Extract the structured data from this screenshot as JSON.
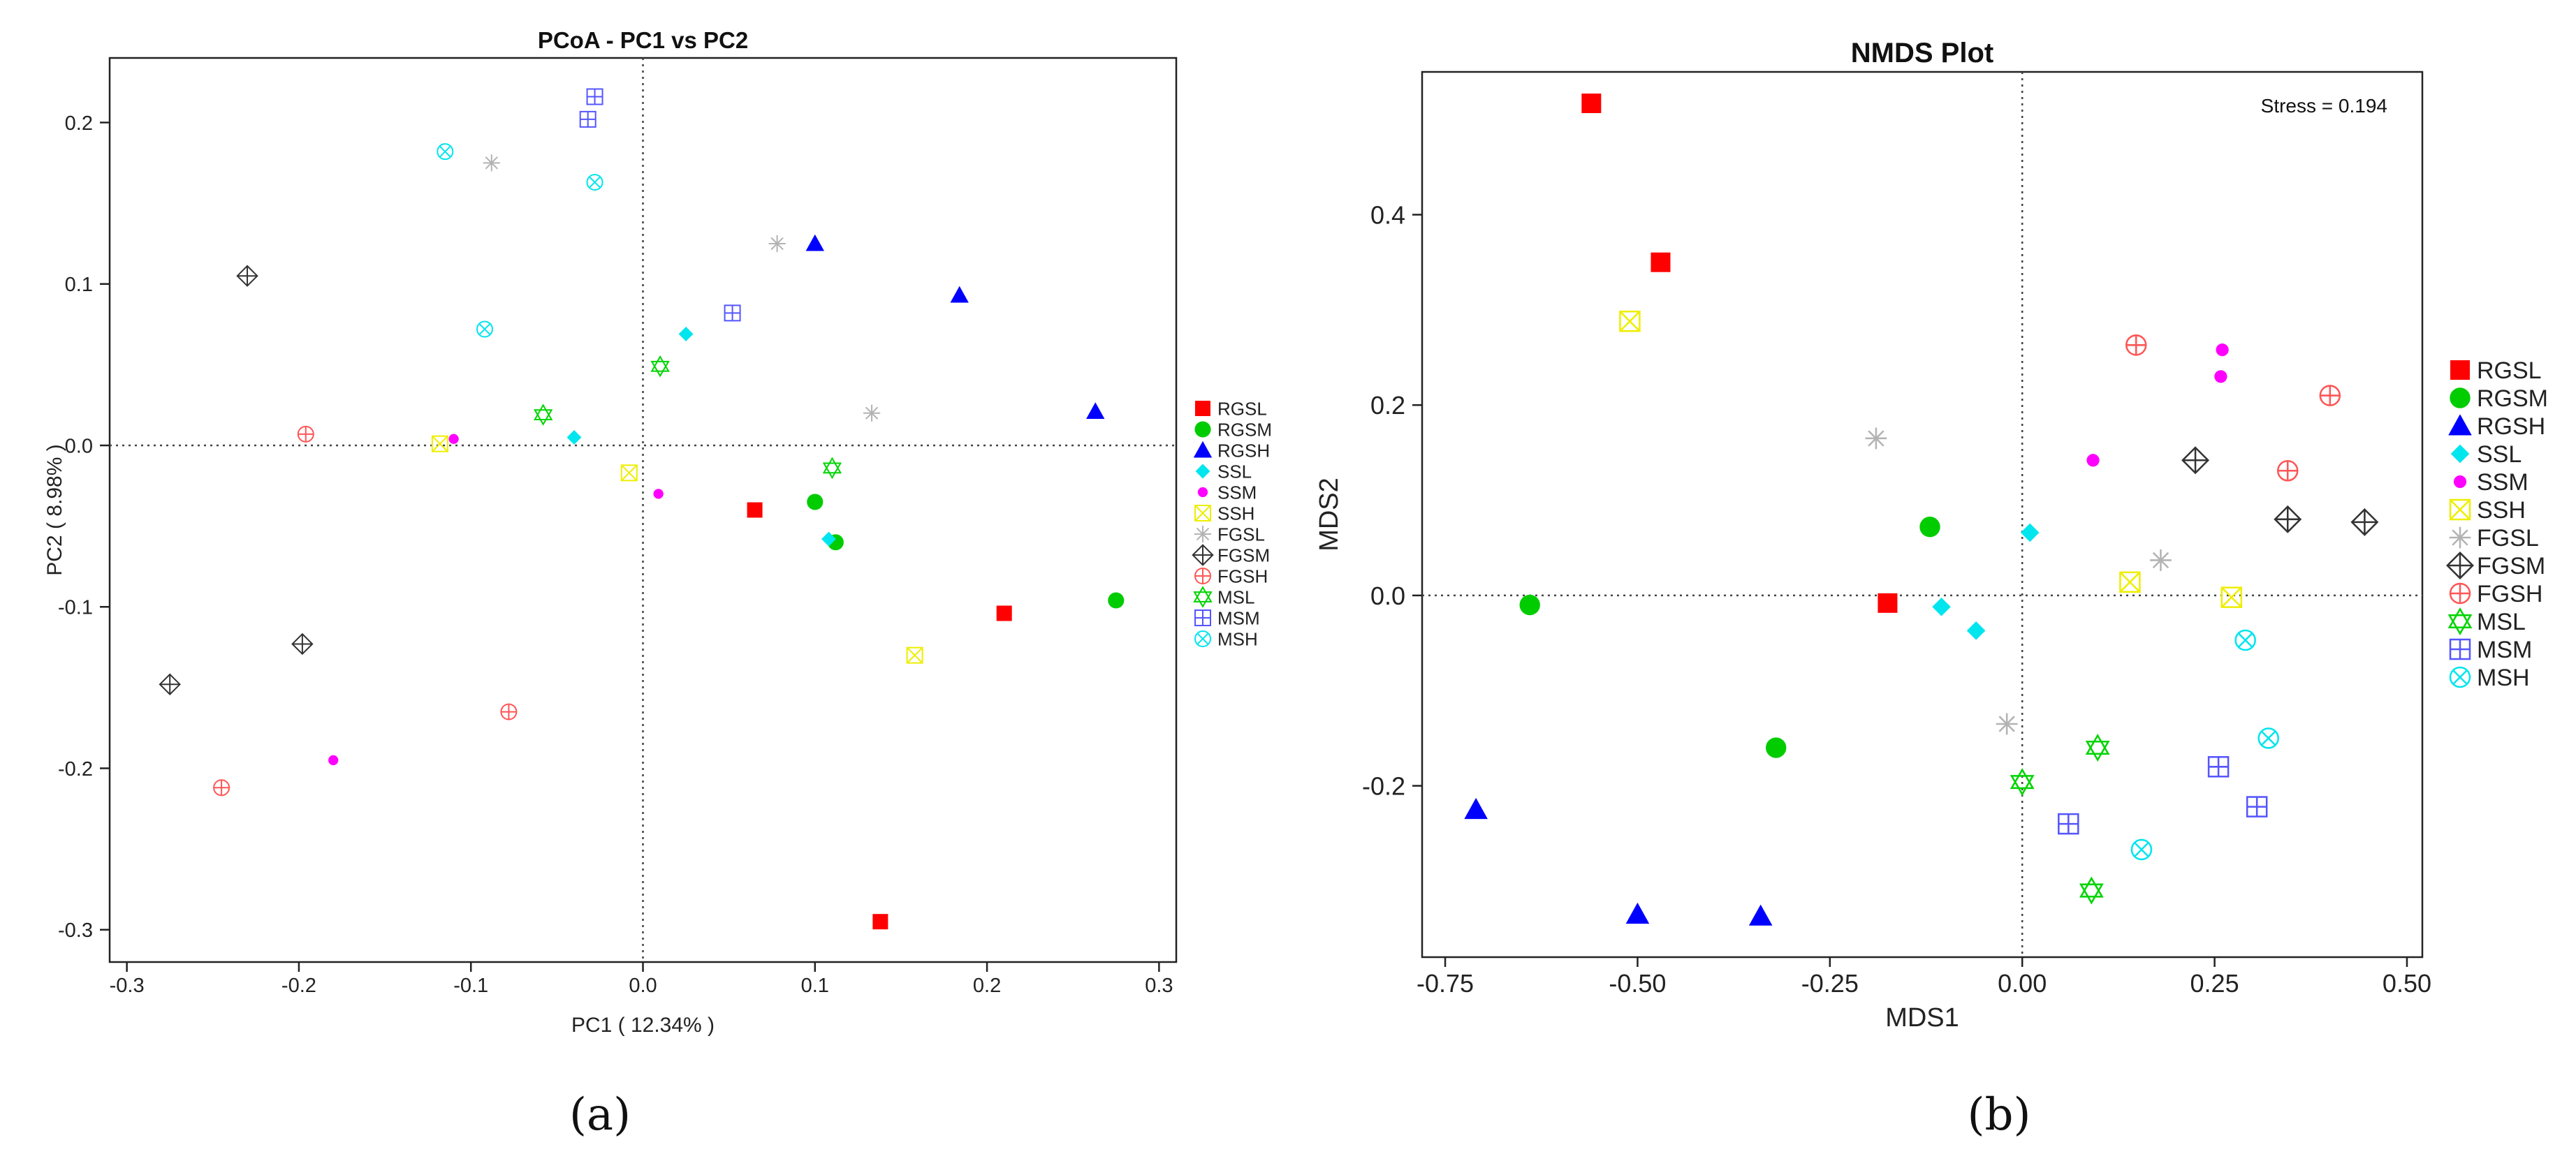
{
  "colors": {
    "RGSL": "#ff0000",
    "RGSM": "#00cc00",
    "RGSH": "#0000ff",
    "SSL": "#00e5ee",
    "SSM": "#ff00ff",
    "SSH": "#eeee00",
    "FGSL": "#b3b3b3",
    "FGSM": "#333333",
    "FGSH": "#ff5555",
    "MSL": "#00d400",
    "MSM": "#5555ff",
    "MSH": "#00e5ee"
  },
  "markers": {
    "RGSL": "square",
    "RGSM": "circle",
    "RGSH": "triangle",
    "SSL": "diamond",
    "SSM": "small-circle",
    "SSH": "square-x",
    "FGSL": "asterisk",
    "FGSM": "diamond-plus",
    "FGSH": "circle-plus",
    "MSL": "hexagram",
    "MSM": "square-plus",
    "MSH": "circle-x"
  },
  "captions": {
    "a": "(a)",
    "b": "(b)"
  },
  "chart_data": [
    {
      "type": "scatter",
      "title": "PCoA - PC1 vs PC2",
      "xlabel": "PC1 ( 12.34% )",
      "ylabel": "PC2 ( 8.98% )",
      "xlim": [
        -0.31,
        0.31
      ],
      "ylim": [
        -0.32,
        0.24
      ],
      "xticks": [
        -0.3,
        -0.2,
        -0.1,
        0.0,
        0.1,
        0.2,
        0.3
      ],
      "xtick_labels": [
        "-0.3",
        "-0.2",
        "-0.1",
        "0.0",
        "0.1",
        "0.2",
        "0.3"
      ],
      "yticks": [
        -0.3,
        -0.2,
        -0.1,
        0.0,
        0.1,
        0.2
      ],
      "ytick_labels": [
        "-0.3",
        "-0.2",
        "-0.1",
        "0.0",
        "0.1",
        "0.2"
      ],
      "reference_lines": {
        "x": 0,
        "y": 0
      },
      "legend": [
        "RGSL",
        "RGSM",
        "RGSH",
        "SSL",
        "SSM",
        "SSH",
        "FGSL",
        "FGSM",
        "FGSH",
        "MSL",
        "MSM",
        "MSH"
      ],
      "legend_position": "right",
      "grid": false,
      "series": [
        {
          "name": "RGSL",
          "points": [
            [
              0.065,
              -0.04
            ],
            [
              0.21,
              -0.104
            ],
            [
              0.138,
              -0.295
            ]
          ]
        },
        {
          "name": "RGSM",
          "points": [
            [
              0.1,
              -0.035
            ],
            [
              0.112,
              -0.06
            ],
            [
              0.275,
              -0.096
            ]
          ]
        },
        {
          "name": "RGSH",
          "points": [
            [
              0.1,
              0.125
            ],
            [
              0.184,
              0.093
            ],
            [
              0.263,
              0.021
            ]
          ]
        },
        {
          "name": "SSL",
          "points": [
            [
              0.025,
              0.069
            ],
            [
              -0.04,
              0.005
            ],
            [
              0.108,
              -0.058
            ]
          ]
        },
        {
          "name": "SSM",
          "points": [
            [
              -0.11,
              0.004
            ],
            [
              0.009,
              -0.03
            ],
            [
              -0.18,
              -0.195
            ]
          ]
        },
        {
          "name": "SSH",
          "points": [
            [
              -0.118,
              0.001
            ],
            [
              -0.008,
              -0.017
            ],
            [
              0.158,
              -0.13
            ]
          ]
        },
        {
          "name": "FGSL",
          "points": [
            [
              -0.088,
              0.175
            ],
            [
              0.078,
              0.125
            ],
            [
              0.133,
              0.02
            ]
          ]
        },
        {
          "name": "FGSM",
          "points": [
            [
              -0.23,
              0.105
            ],
            [
              -0.198,
              -0.123
            ],
            [
              -0.275,
              -0.148
            ]
          ]
        },
        {
          "name": "FGSH",
          "points": [
            [
              -0.196,
              0.007
            ],
            [
              -0.078,
              -0.165
            ],
            [
              -0.245,
              -0.212
            ]
          ]
        },
        {
          "name": "MSL",
          "points": [
            [
              -0.058,
              0.019
            ],
            [
              0.01,
              0.049
            ],
            [
              0.11,
              -0.014
            ]
          ]
        },
        {
          "name": "MSM",
          "points": [
            [
              -0.028,
              0.216
            ],
            [
              -0.032,
              0.202
            ],
            [
              0.052,
              0.082
            ]
          ]
        },
        {
          "name": "MSH",
          "points": [
            [
              -0.115,
              0.182
            ],
            [
              -0.028,
              0.163
            ],
            [
              -0.092,
              0.072
            ]
          ]
        }
      ]
    },
    {
      "type": "scatter",
      "title": "NMDS Plot",
      "xlabel": "MDS1",
      "ylabel": "MDS2",
      "annotation": "Stress = 0.194",
      "xlim": [
        -0.78,
        0.52
      ],
      "ylim": [
        -0.38,
        0.55
      ],
      "xticks": [
        -0.75,
        -0.5,
        -0.25,
        0.0,
        0.25,
        0.5
      ],
      "xtick_labels": [
        "-0.75",
        "-0.50",
        "-0.25",
        "0.00",
        "0.25",
        "0.50"
      ],
      "yticks": [
        -0.2,
        0.0,
        0.2,
        0.4
      ],
      "ytick_labels": [
        "-0.2",
        "0.0",
        "0.2",
        "0.4"
      ],
      "reference_lines": {
        "x": 0,
        "y": 0
      },
      "legend": [
        "RGSL",
        "RGSM",
        "RGSH",
        "SSL",
        "SSM",
        "SSH",
        "FGSL",
        "FGSM",
        "FGSH",
        "MSL",
        "MSM",
        "MSH"
      ],
      "legend_position": "right",
      "grid": false,
      "series": [
        {
          "name": "RGSL",
          "points": [
            [
              -0.56,
              0.517
            ],
            [
              -0.47,
              0.35
            ],
            [
              -0.175,
              -0.008
            ]
          ]
        },
        {
          "name": "RGSM",
          "points": [
            [
              -0.64,
              -0.01
            ],
            [
              -0.12,
              0.072
            ],
            [
              -0.32,
              -0.16
            ]
          ]
        },
        {
          "name": "RGSH",
          "points": [
            [
              -0.71,
              -0.225
            ],
            [
              -0.5,
              -0.335
            ],
            [
              -0.34,
              -0.337
            ]
          ]
        },
        {
          "name": "SSL",
          "points": [
            [
              0.01,
              0.066
            ],
            [
              -0.105,
              -0.012
            ],
            [
              -0.06,
              -0.037
            ]
          ]
        },
        {
          "name": "SSM",
          "points": [
            [
              0.26,
              0.258
            ],
            [
              0.258,
              0.23
            ],
            [
              0.092,
              0.142
            ]
          ]
        },
        {
          "name": "SSH",
          "points": [
            [
              -0.51,
              0.288
            ],
            [
              0.14,
              0.014
            ],
            [
              0.272,
              -0.002
            ]
          ]
        },
        {
          "name": "FGSL",
          "points": [
            [
              -0.19,
              0.165
            ],
            [
              0.18,
              0.037
            ],
            [
              -0.02,
              -0.135
            ]
          ]
        },
        {
          "name": "FGSM",
          "points": [
            [
              0.225,
              0.142
            ],
            [
              0.345,
              0.08
            ],
            [
              0.445,
              0.077
            ]
          ]
        },
        {
          "name": "FGSH",
          "points": [
            [
              0.148,
              0.263
            ],
            [
              0.4,
              0.21
            ],
            [
              0.345,
              0.131
            ]
          ]
        },
        {
          "name": "MSL",
          "points": [
            [
              0.098,
              -0.16
            ],
            [
              0.0,
              -0.196
            ],
            [
              0.09,
              -0.31
            ]
          ]
        },
        {
          "name": "MSM",
          "points": [
            [
              0.255,
              -0.18
            ],
            [
              0.305,
              -0.222
            ],
            [
              0.06,
              -0.24
            ]
          ]
        },
        {
          "name": "MSH",
          "points": [
            [
              0.29,
              -0.047
            ],
            [
              0.32,
              -0.15
            ],
            [
              0.155,
              -0.267
            ]
          ]
        }
      ]
    }
  ]
}
